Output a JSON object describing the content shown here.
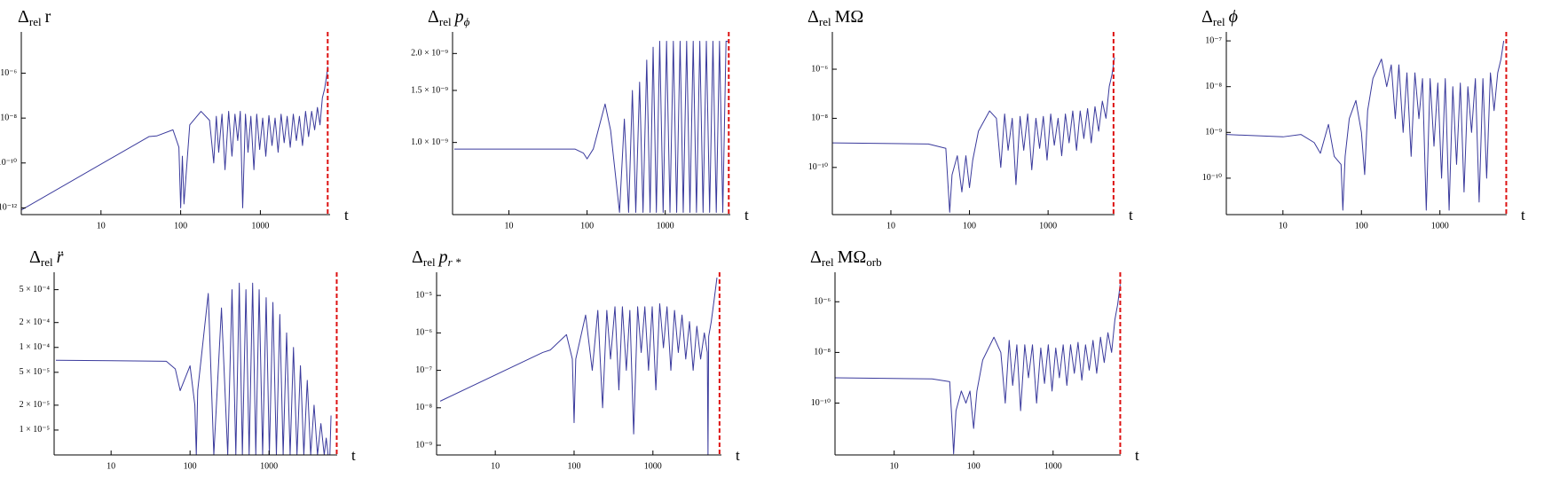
{
  "chart_data": [
    {
      "type": "line",
      "title": {
        "symbol": "Δ",
        "subscript": "rel",
        "quantity": "r",
        "italic": false
      },
      "xlabel": "t",
      "log_x": true,
      "log_y": true,
      "xlim": [
        1,
        7500
      ],
      "xticks": [
        10,
        100,
        1000
      ],
      "ylim": [
        5e-13,
        4e-05
      ],
      "yticks": [
        {
          "value": 1e-06,
          "label": "10⁻⁶"
        },
        {
          "value": 1e-08,
          "label": "10⁻⁸"
        },
        {
          "value": 1e-10,
          "label": "10⁻¹⁰"
        },
        {
          "value": 1e-12,
          "label": "10⁻¹²"
        }
      ],
      "marker": {
        "x": 7000,
        "color": "#dd1111"
      },
      "series": [
        {
          "color": "#3a3a9c",
          "x": [
            1,
            40,
            50,
            80,
            95,
            100,
            105,
            110,
            130,
            180,
            230,
            260,
            280,
            300,
            330,
            360,
            400,
            440,
            480,
            520,
            560,
            600,
            650,
            700,
            760,
            830,
            900,
            980,
            1070,
            1170,
            1280,
            1400,
            1530,
            1670,
            1820,
            1990,
            2170,
            2370,
            2590,
            2830,
            3090,
            3380,
            3690,
            4030,
            4400,
            4800,
            5200,
            5600,
            6000,
            6400,
            6800,
            7000
          ],
          "values": [
            8e-13,
            1.5e-09,
            1.6e-09,
            3e-09,
            5e-10,
            1e-12,
            2e-10,
            1.5e-12,
            5e-09,
            2e-08,
            8e-09,
            1e-10,
            1.2e-08,
            3e-10,
            1.5e-08,
            5e-11,
            2e-08,
            2e-10,
            1.5e-08,
            1e-09,
            2e-08,
            1e-12,
            1.5e-08,
            3e-10,
            1.2e-08,
            5e-11,
            1.5e-08,
            4e-10,
            1e-08,
            2e-10,
            1.3e-08,
            6e-10,
            1e-08,
            3e-10,
            1.5e-08,
            8e-10,
            1.2e-08,
            5e-10,
            1.5e-08,
            1e-09,
            1.2e-08,
            6e-10,
            2e-08,
            1.5e-09,
            2e-08,
            3e-09,
            3e-08,
            5e-09,
            8e-08,
            2e-07,
            8e-07,
            2e-06
          ]
        }
      ]
    },
    {
      "type": "line",
      "title": {
        "symbol": "Δ",
        "subscript": "rel",
        "quantity": "p",
        "quantity_subscript": "ϕ",
        "italic": true
      },
      "xlabel": "t",
      "log_x": true,
      "log_y": true,
      "xlim": [
        1.9,
        6800
      ],
      "xticks": [
        10,
        100,
        1000
      ],
      "ylim": [
        5.7e-10,
        2.27e-09
      ],
      "yticks": [
        {
          "value": 2e-09,
          "label": "2.0 × 10⁻⁹"
        },
        {
          "value": 1.5e-09,
          "label": "1.5 × 10⁻⁹"
        },
        {
          "value": 1e-09,
          "label": "1.0 × 10⁻⁹"
        }
      ],
      "marker": {
        "x": 6500,
        "color": "#dd1111"
      },
      "series": [
        {
          "color": "#3a3a9c",
          "x": [
            2,
            70,
            90,
            100,
            120,
            170,
            200,
            260,
            300,
            340,
            380,
            420,
            470,
            520,
            580,
            640,
            700,
            770,
            850,
            940,
            1040,
            1150,
            1270,
            1400,
            1550,
            1700,
            1880,
            2070,
            2280,
            2510,
            2770,
            3050,
            3360,
            3700,
            4080,
            4500,
            4950,
            5450,
            6000,
            6500
          ],
          "values": [
            9.5e-10,
            9.5e-10,
            9.2e-10,
            8.8e-10,
            9.5e-10,
            1.35e-09,
            1.1e-09,
            5.8e-10,
            1.2e-09,
            5.8e-10,
            1.5e-09,
            5.8e-10,
            1.6e-09,
            5.8e-10,
            1.9e-09,
            5.8e-10,
            2.1e-09,
            5.8e-10,
            2.2e-09,
            5.8e-10,
            2.2e-09,
            5.8e-10,
            2.2e-09,
            5.8e-10,
            2.2e-09,
            5.8e-10,
            2.2e-09,
            5.8e-10,
            2.2e-09,
            5.8e-10,
            2.2e-09,
            5.8e-10,
            2.2e-09,
            5.8e-10,
            2.2e-09,
            5.8e-10,
            2.2e-09,
            5.8e-10,
            2.2e-09,
            2.2e-09
          ]
        }
      ]
    },
    {
      "type": "line",
      "title": {
        "symbol": "Δ",
        "subscript": "rel",
        "quantity": "MΩ",
        "italic": false
      },
      "xlabel": "t",
      "log_x": true,
      "log_y": true,
      "xlim": [
        1.8,
        7000
      ],
      "xticks": [
        10,
        100,
        1000
      ],
      "ylim": [
        1.2e-12,
        2e-05
      ],
      "yticks": [
        {
          "value": 1e-06,
          "label": "10⁻⁶"
        },
        {
          "value": 1e-08,
          "label": "10⁻⁸"
        },
        {
          "value": 1e-10,
          "label": "10⁻¹⁰"
        }
      ],
      "marker": {
        "x": 6800,
        "color": "#dd1111"
      },
      "series": [
        {
          "color": "#3a3a9c",
          "x": [
            1.8,
            30,
            50,
            54,
            56,
            60,
            70,
            80,
            90,
            100,
            110,
            130,
            180,
            220,
            250,
            280,
            310,
            350,
            390,
            440,
            490,
            550,
            620,
            700,
            780,
            870,
            970,
            1080,
            1200,
            1340,
            1490,
            1660,
            1850,
            2060,
            2300,
            2560,
            2850,
            3180,
            3540,
            3950,
            4400,
            4900,
            5450,
            6000,
            6500,
            7000
          ],
          "values": [
            1e-09,
            9e-10,
            6e-10,
            1e-11,
            1.5e-12,
            5e-11,
            3e-10,
            1e-11,
            3e-10,
            1.5e-11,
            2e-10,
            3e-09,
            2e-08,
            1e-08,
            1e-10,
            1.5e-08,
            5e-10,
            1e-08,
            2e-11,
            1.2e-08,
            5e-10,
            1.5e-08,
            8e-11,
            1e-08,
            6e-10,
            1.2e-08,
            2e-10,
            1.5e-08,
            8e-10,
            1e-08,
            3e-10,
            1.5e-08,
            1e-09,
            2e-08,
            5e-10,
            2e-08,
            1.5e-09,
            2.5e-08,
            1e-09,
            3e-08,
            3e-09,
            5e-08,
            1e-08,
            2e-07,
            6e-07,
            3e-06
          ]
        }
      ]
    },
    {
      "type": "line",
      "title": {
        "symbol": "Δ",
        "subscript": "rel",
        "quantity": "ϕ",
        "italic": true
      },
      "xlabel": "t",
      "log_x": true,
      "log_y": true,
      "xlim": [
        1.9,
        7100
      ],
      "xticks": [
        10,
        100,
        1000
      ],
      "ylim": [
        1.6e-11,
        1.2e-07
      ],
      "yticks": [
        {
          "value": 1e-07,
          "label": "10⁻⁷"
        },
        {
          "value": 1e-08,
          "label": "10⁻⁸"
        },
        {
          "value": 1e-09,
          "label": "10⁻⁹"
        },
        {
          "value": 1e-10,
          "label": "10⁻¹⁰"
        }
      ],
      "marker": {
        "x": 7000,
        "color": "#dd1111"
      },
      "series": [
        {
          "color": "#3a3a9c",
          "x": [
            1.9,
            10,
            17,
            25,
            30,
            38,
            45,
            55,
            58,
            62,
            70,
            85,
            100,
            110,
            120,
            140,
            180,
            210,
            240,
            270,
            300,
            340,
            380,
            430,
            480,
            540,
            600,
            670,
            750,
            840,
            940,
            1050,
            1170,
            1310,
            1460,
            1630,
            1820,
            2030,
            2270,
            2530,
            2830,
            3160,
            3530,
            3940,
            4400,
            4900,
            5450,
            6000,
            6500
          ],
          "values": [
            9e-10,
            8e-10,
            9e-10,
            6e-10,
            3.5e-10,
            1.5e-09,
            3e-10,
            2e-10,
            2e-11,
            3e-10,
            2e-09,
            5e-09,
            1e-09,
            1.2e-10,
            3e-09,
            1.5e-08,
            4e-08,
            1e-08,
            3e-08,
            2e-09,
            3e-08,
            1e-09,
            2e-08,
            3e-10,
            2e-08,
            2e-09,
            1.5e-08,
            2e-11,
            1.5e-08,
            5e-10,
            1.2e-08,
            1e-10,
            1.5e-08,
            2e-11,
            1e-08,
            2e-10,
            1.2e-08,
            5e-11,
            1e-08,
            1e-09,
            1.5e-08,
            3e-11,
            1.5e-08,
            1e-10,
            2e-08,
            3e-09,
            2e-08,
            4e-08,
            1e-07
          ]
        }
      ]
    },
    {
      "type": "line",
      "title": {
        "symbol": "Δ",
        "subscript": "rel",
        "quantity": "r̈",
        "italic": true
      },
      "xlabel": "t",
      "log_x": true,
      "log_y": true,
      "xlim": [
        1.9,
        7300
      ],
      "xticks": [
        10,
        100,
        1000
      ],
      "ylim": [
        5e-06,
        0.0007
      ],
      "yticks": [
        {
          "value": 0.0005,
          "label": "5 × 10⁻⁴"
        },
        {
          "value": 0.0002,
          "label": "2 × 10⁻⁴"
        },
        {
          "value": 0.0001,
          "label": "1 × 10⁻⁴"
        },
        {
          "value": 5e-05,
          "label": "5 × 10⁻⁵"
        },
        {
          "value": 2e-05,
          "label": "2 × 10⁻⁵"
        },
        {
          "value": 1e-05,
          "label": "1 × 10⁻⁵"
        }
      ],
      "marker": {
        "x": 7200,
        "color": "#dd1111"
      },
      "series": [
        {
          "color": "#3a3a9c",
          "x": [
            2,
            50,
            65,
            75,
            100,
            115,
            120,
            125,
            170,
            200,
            250,
            300,
            340,
            380,
            420,
            460,
            510,
            560,
            620,
            680,
            750,
            830,
            920,
            1010,
            1120,
            1240,
            1370,
            1510,
            1670,
            1850,
            2040,
            2260,
            2500,
            2760,
            3050,
            3370,
            3720,
            4110,
            4540,
            5000,
            5300,
            5600,
            5900,
            6100
          ],
          "values": [
            7e-05,
            6.8e-05,
            5.5e-05,
            3e-05,
            6e-05,
            2e-05,
            5e-06,
            3e-05,
            0.00045,
            5e-06,
            0.0003,
            5e-06,
            0.0005,
            5e-06,
            0.0006,
            5e-06,
            0.0005,
            5e-06,
            0.0006,
            5e-06,
            0.0005,
            5e-06,
            0.0004,
            5e-06,
            0.00035,
            5e-06,
            0.00025,
            5e-06,
            0.00015,
            5e-06,
            0.0001,
            5e-06,
            6e-05,
            5e-06,
            4e-05,
            5e-06,
            2e-05,
            5e-06,
            1.2e-05,
            5e-06,
            8e-06,
            5e-06,
            5e-06,
            1.5e-05
          ]
        }
      ]
    },
    {
      "type": "line",
      "title": {
        "symbol": "Δ",
        "subscript": "rel",
        "quantity": "p",
        "quantity_subscript": "r *",
        "italic": true
      },
      "xlabel": "t",
      "log_x": true,
      "log_y": true,
      "xlim": [
        1.8,
        7400
      ],
      "xticks": [
        10,
        100,
        1000
      ],
      "ylim": [
        5.5e-10,
        3e-05
      ],
      "yticks": [
        {
          "value": 1e-05,
          "label": "10⁻⁵"
        },
        {
          "value": 1e-06,
          "label": "10⁻⁶"
        },
        {
          "value": 1e-07,
          "label": "10⁻⁷"
        },
        {
          "value": 1e-08,
          "label": "10⁻⁸"
        },
        {
          "value": 1e-09,
          "label": "10⁻⁹"
        }
      ],
      "marker": {
        "x": 7000,
        "color": "#dd1111"
      },
      "series": [
        {
          "color": "#3a3a9c",
          "x": [
            2,
            40,
            50,
            80,
            95,
            100,
            105,
            140,
            170,
            200,
            230,
            260,
            290,
            330,
            370,
            410,
            460,
            510,
            570,
            640,
            710,
            790,
            880,
            980,
            1090,
            1220,
            1360,
            1510,
            1690,
            1880,
            2100,
            2340,
            2610,
            2910,
            3240,
            3610,
            4030,
            4490,
            4900,
            5000,
            5100,
            5500,
            6000,
            6500
          ],
          "values": [
            1.5e-08,
            3e-07,
            3.5e-07,
            9e-07,
            2e-07,
            4e-09,
            2e-07,
            3e-06,
            1e-07,
            4e-06,
            1e-08,
            4e-06,
            2e-07,
            5e-06,
            3e-08,
            5e-06,
            1e-07,
            4e-06,
            2e-09,
            5e-06,
            3e-07,
            5e-06,
            1e-07,
            5e-06,
            3e-08,
            6e-06,
            4e-07,
            5e-06,
            1e-07,
            4e-06,
            3e-07,
            3e-06,
            2e-07,
            2e-06,
            1e-07,
            1.5e-06,
            2e-07,
            1e-06,
            3e-07,
            5.5e-10,
            8e-07,
            2e-06,
            8e-06,
            3e-05
          ]
        }
      ]
    },
    {
      "type": "line",
      "title": {
        "symbol": "Δ",
        "subscript": "rel",
        "quantity": "MΩ",
        "quantity_subscript": "orb",
        "italic": false
      },
      "xlabel": "t",
      "log_x": true,
      "log_y": true,
      "xlim": [
        1.8,
        7100
      ],
      "xticks": [
        10,
        100,
        1000
      ],
      "ylim": [
        9e-13,
        9e-06
      ],
      "yticks": [
        {
          "value": 1e-06,
          "label": "10⁻⁶"
        },
        {
          "value": 1e-08,
          "label": "10⁻⁸"
        },
        {
          "value": 1e-10,
          "label": "10⁻¹⁰"
        }
      ],
      "marker": {
        "x": 7000,
        "color": "#dd1111"
      },
      "series": [
        {
          "color": "#3a3a9c",
          "x": [
            1.8,
            30,
            50,
            54,
            56,
            60,
            70,
            80,
            90,
            100,
            110,
            130,
            180,
            220,
            250,
            280,
            310,
            350,
            390,
            440,
            490,
            550,
            620,
            700,
            780,
            870,
            970,
            1080,
            1200,
            1340,
            1490,
            1660,
            1850,
            2060,
            2300,
            2560,
            2850,
            3180,
            3540,
            3950,
            4400,
            4900,
            5450,
            6000,
            6500,
            7000
          ],
          "values": [
            1e-09,
            9e-10,
            7e-10,
            1e-11,
            1e-12,
            5e-11,
            3e-10,
            1e-10,
            3e-10,
            1e-11,
            3e-10,
            5e-09,
            4e-08,
            1e-08,
            1e-10,
            3e-08,
            5e-10,
            2e-08,
            5e-11,
            2e-08,
            1e-09,
            2e-08,
            1e-10,
            1.5e-08,
            6e-10,
            2e-08,
            3e-10,
            1.5e-08,
            1e-09,
            2e-08,
            5e-10,
            2e-08,
            1.5e-09,
            2.5e-08,
            8e-10,
            2e-08,
            2e-09,
            3e-08,
            1.5e-09,
            4e-08,
            4e-09,
            6e-08,
            1e-08,
            2e-07,
            8e-07,
            5e-06
          ]
        }
      ]
    }
  ]
}
